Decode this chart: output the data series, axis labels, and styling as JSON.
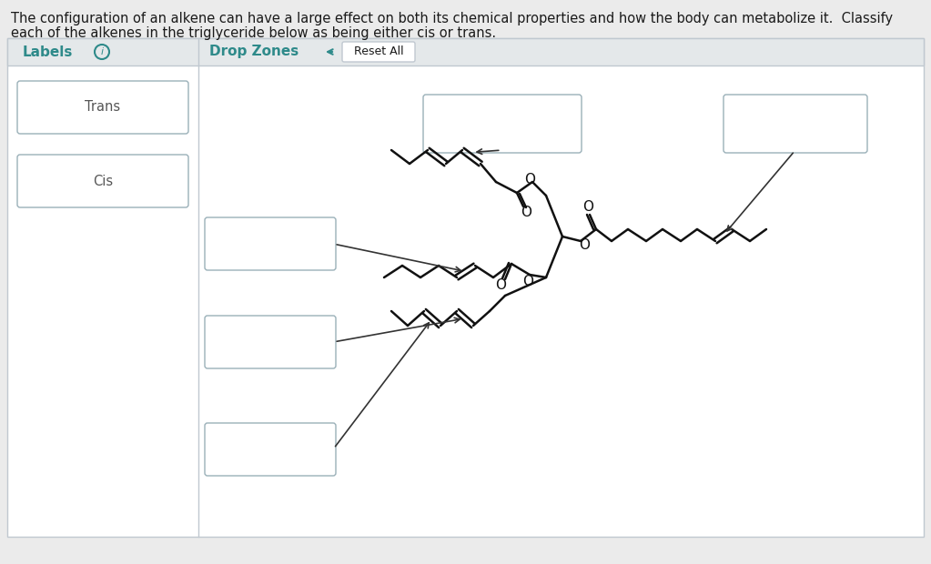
{
  "bg_color": "#ebebeb",
  "panel_bg": "#ffffff",
  "box_bg": "#ffffff",
  "box_edge": "#c0c8d0",
  "header_bg": "#e4e8ea",
  "text_teal": "#2e8a8a",
  "text_dark": "#1a1a1a",
  "text_gray": "#555555",
  "title_text1": "The configuration of an alkene can have a large effect on both its chemical properties and how the body can metabolize it.  Classify",
  "title_text2": "each of the alkenes in the triglyceride below as being either cis or trans.",
  "labels_header": "Labels",
  "dropzones_header": "Drop Zones",
  "reset_btn": "Reset All",
  "label1": "Trans",
  "label2": "Cis"
}
